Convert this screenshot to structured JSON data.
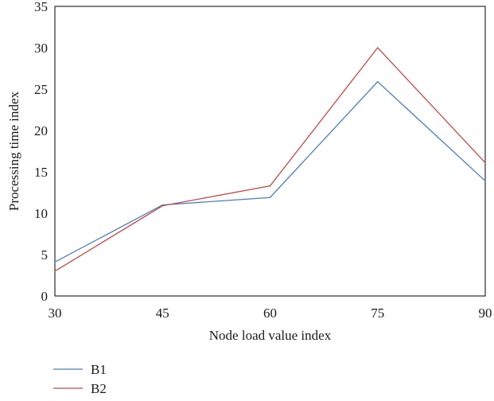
{
  "chart_data": {
    "type": "line",
    "title": "",
    "xlabel": "Node load value index",
    "ylabel": "Processing time index",
    "x": [
      30,
      45,
      60,
      75,
      90
    ],
    "xlim": [
      30,
      90
    ],
    "ylim": [
      0,
      35
    ],
    "xticks": [
      "30",
      "45",
      "60",
      "75",
      "90"
    ],
    "yticks": [
      "0",
      "5",
      "10",
      "15",
      "20",
      "25",
      "30",
      "35"
    ],
    "grid": false,
    "legend_position": "bottom-left",
    "series": [
      {
        "name": "B1",
        "color": "#4a7ebb",
        "values": [
          4.1,
          11.0,
          11.9,
          25.9,
          13.9
        ]
      },
      {
        "name": "B2",
        "color": "#be4b48",
        "values": [
          3.0,
          10.9,
          13.3,
          30.0,
          16.1
        ]
      }
    ]
  }
}
